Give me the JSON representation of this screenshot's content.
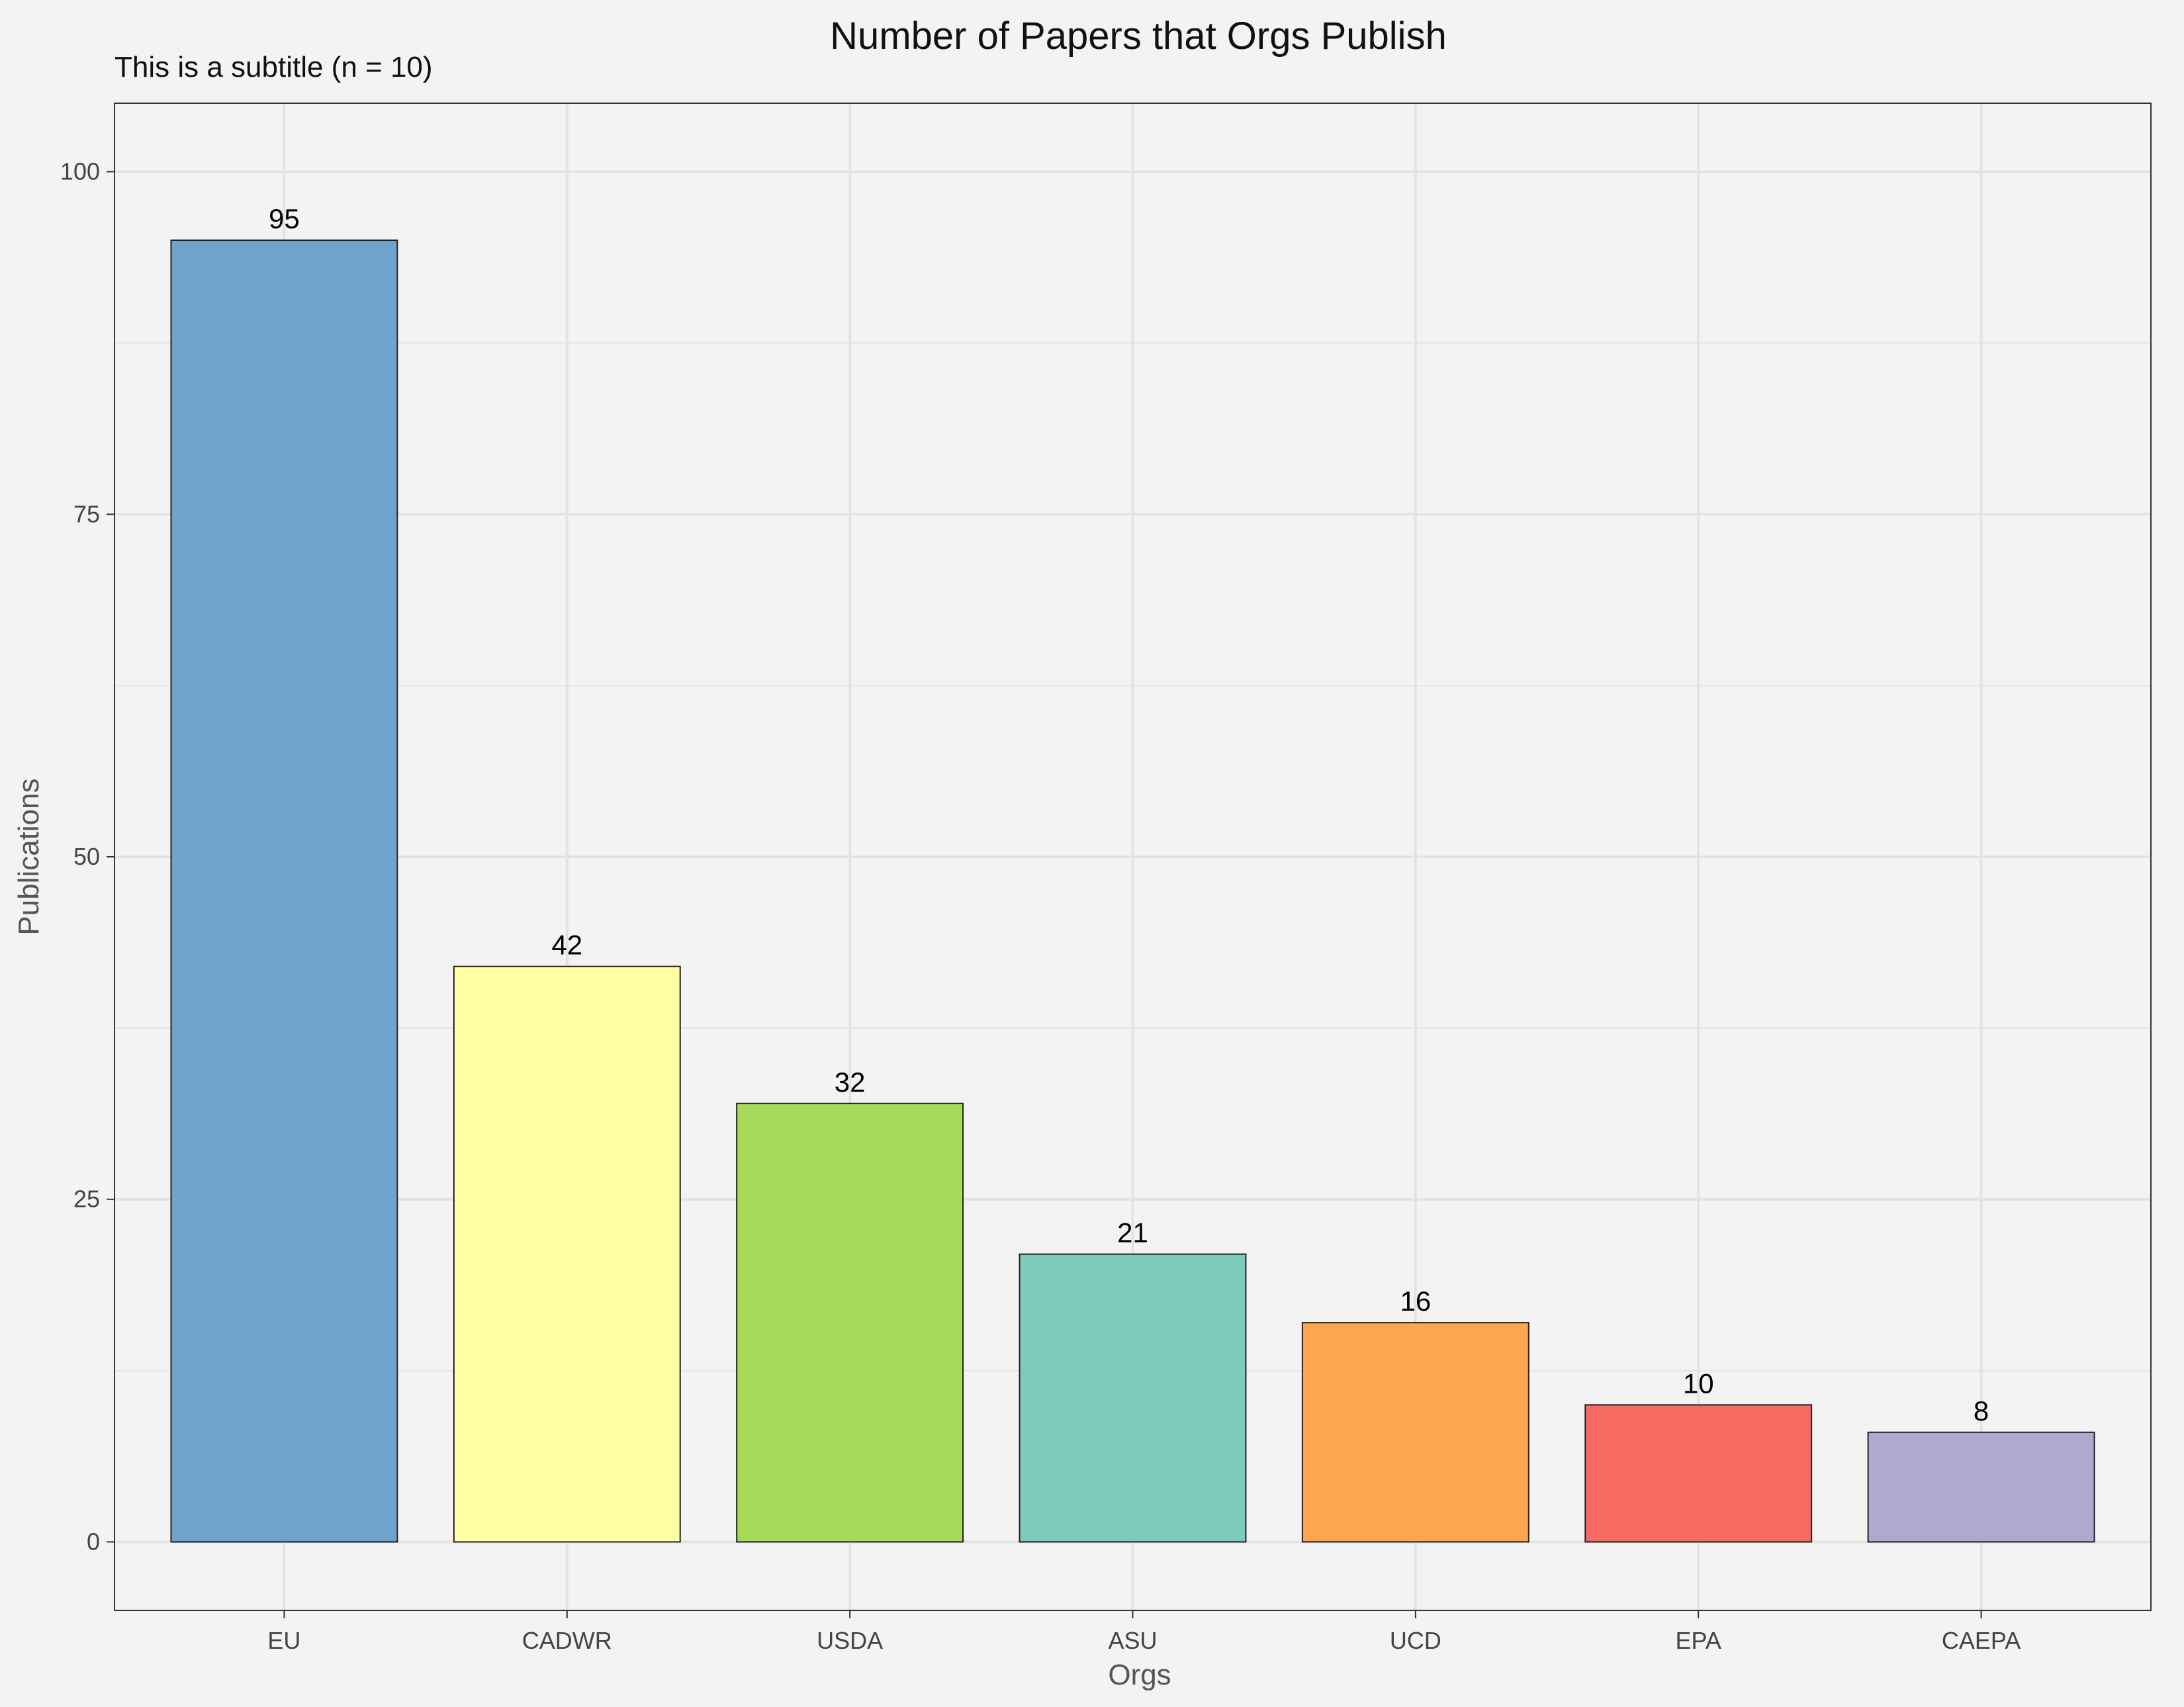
{
  "chart_data": {
    "type": "bar",
    "title": "Number of Papers that Orgs Publish",
    "subtitle": "This is a subtitle (n = 10)",
    "xlabel": "Orgs",
    "ylabel": "Publications",
    "categories": [
      "EU",
      "CADWR",
      "USDA",
      "ASU",
      "UCD",
      "EPA",
      "CAEPA"
    ],
    "values": [
      95,
      42,
      32,
      21,
      16,
      10,
      8
    ],
    "data_labels": [
      "95",
      "42",
      "32",
      "21",
      "16",
      "10",
      "8"
    ],
    "colors": [
      "#6fa3cb",
      "#ffffa3",
      "#a8da5a",
      "#7ecbbb",
      "#fda64f",
      "#f76a62",
      "#b0a9cf"
    ],
    "y_ticks": [
      0,
      25,
      50,
      75,
      100
    ],
    "y_tick_labels": [
      "0",
      "25",
      "50",
      "75",
      "100"
    ],
    "ylim": [
      -5,
      105
    ],
    "grid": true,
    "legend": "none",
    "background": "#f3f3f3",
    "grid_color": "#e3e3e3",
    "bar_edge_color": "#222222"
  }
}
